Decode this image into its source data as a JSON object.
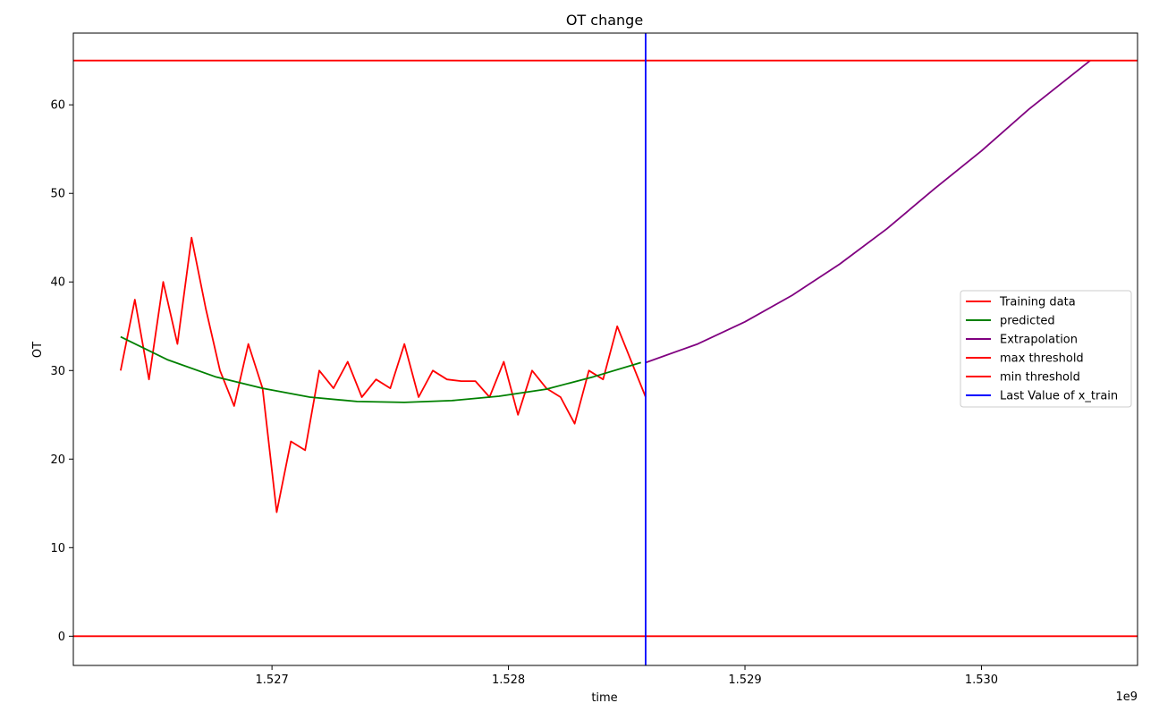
{
  "chart_data": {
    "type": "line",
    "title": "OT change",
    "xlabel": "time",
    "ylabel": "OT",
    "x_offset_text": "1e9",
    "xlim": [
      1.52616,
      1.53066
    ],
    "ylim": [
      -3.3,
      68.1
    ],
    "x_ticks": [
      1.527,
      1.528,
      1.529,
      1.53
    ],
    "x_tick_labels": [
      "1.527",
      "1.528",
      "1.529",
      "1.530"
    ],
    "y_ticks": [
      0,
      10,
      20,
      30,
      40,
      50,
      60
    ],
    "y_tick_labels": [
      "0",
      "10",
      "20",
      "30",
      "40",
      "50",
      "60"
    ],
    "grid": false,
    "legend_position": "center-right",
    "series": [
      {
        "name": "Training data",
        "color": "#ff0000",
        "x": [
          1.52636,
          1.52642,
          1.52648,
          1.52654,
          1.5266,
          1.52666,
          1.52672,
          1.52678,
          1.52684,
          1.5269,
          1.52696,
          1.52702,
          1.52708,
          1.52714,
          1.5272,
          1.52726,
          1.52732,
          1.52738,
          1.52744,
          1.5275,
          1.52756,
          1.52762,
          1.52768,
          1.52774,
          1.5278,
          1.52786,
          1.52792,
          1.52798,
          1.52804,
          1.5281,
          1.52816,
          1.52822,
          1.52828,
          1.52834,
          1.5284,
          1.52846,
          1.52852,
          1.52858
        ],
        "y": [
          30,
          38,
          29,
          40,
          33,
          45,
          37,
          30,
          26,
          33,
          28,
          14,
          22,
          21,
          30,
          28,
          31,
          27,
          29,
          28,
          33,
          27,
          30,
          29,
          28.8,
          28.8,
          27,
          31,
          25,
          30,
          28,
          27,
          24,
          30,
          29,
          35,
          31,
          27
        ]
      },
      {
        "name": "predicted",
        "color": "#008000",
        "x": [
          1.52636,
          1.52656,
          1.52676,
          1.52696,
          1.52716,
          1.52736,
          1.52756,
          1.52776,
          1.52796,
          1.52816,
          1.52836,
          1.52856
        ],
        "y": [
          33.8,
          31.2,
          29.3,
          28.0,
          27.0,
          26.5,
          26.4,
          26.6,
          27.1,
          27.9,
          29.3,
          30.9
        ]
      },
      {
        "name": "Extrapolation",
        "color": "#800080",
        "x": [
          1.52858,
          1.5288,
          1.529,
          1.5292,
          1.5294,
          1.5296,
          1.5298,
          1.53,
          1.5302,
          1.53046
        ],
        "y": [
          30.9,
          33.0,
          35.5,
          38.5,
          42.0,
          46.0,
          50.5,
          54.8,
          59.5,
          65.0
        ]
      }
    ],
    "reference_lines": [
      {
        "name": "max threshold",
        "orientation": "horizontal",
        "value": 65,
        "color": "#ff0000"
      },
      {
        "name": "min threshold",
        "orientation": "horizontal",
        "value": 0,
        "color": "#ff0000"
      },
      {
        "name": "Last Value of x_train",
        "orientation": "vertical",
        "value": 1.52858,
        "color": "#0000ff"
      }
    ],
    "legend": [
      {
        "label": "Training data",
        "color": "#ff0000"
      },
      {
        "label": "predicted",
        "color": "#008000"
      },
      {
        "label": "Extrapolation",
        "color": "#800080"
      },
      {
        "label": "max threshold",
        "color": "#ff0000"
      },
      {
        "label": "min threshold",
        "color": "#ff0000"
      },
      {
        "label": "Last Value of x_train",
        "color": "#0000ff"
      }
    ]
  }
}
